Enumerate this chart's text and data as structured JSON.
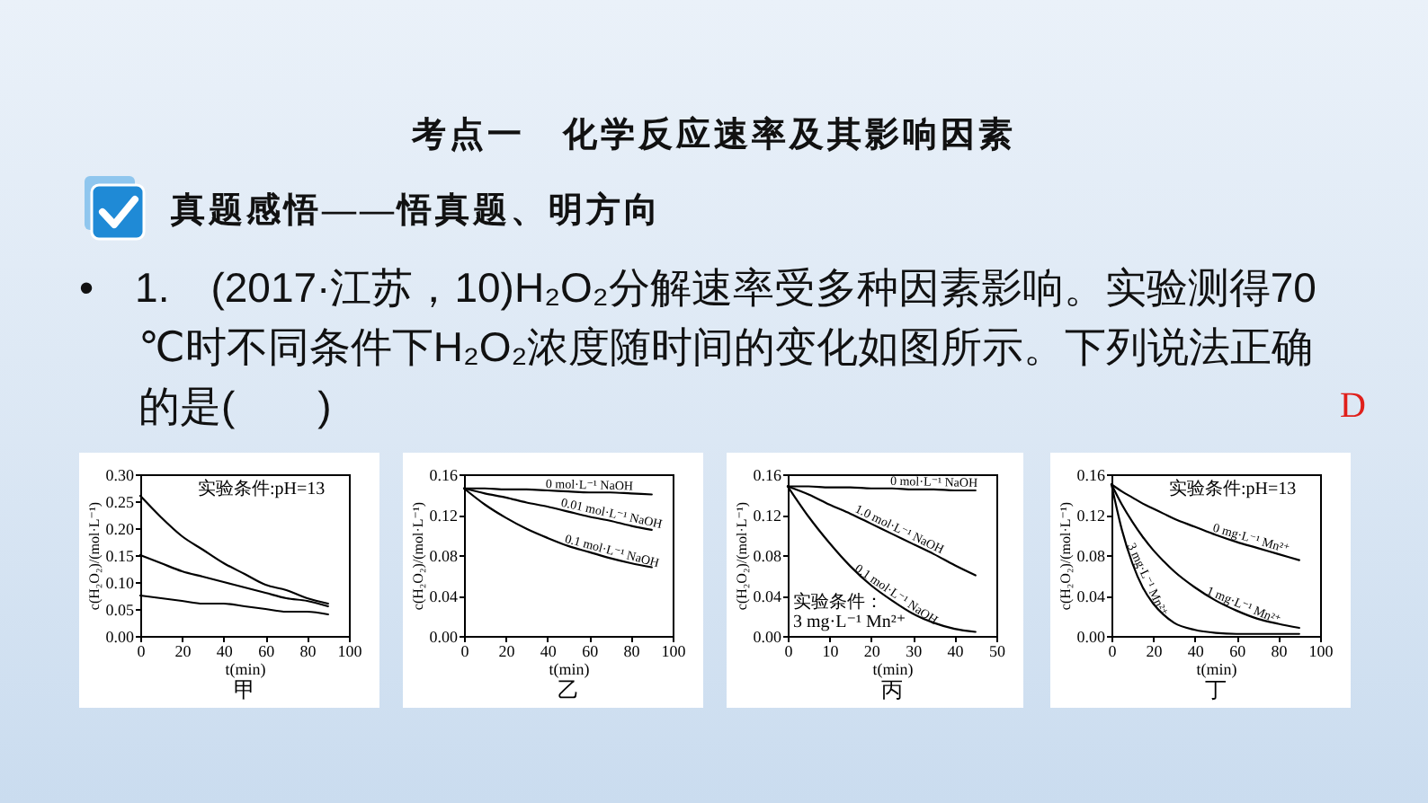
{
  "chart_data": [
    {
      "type": "line",
      "title": "甲",
      "xlabel": "t(min)",
      "ylabel": "c(H₂O₂)/(mol·L⁻¹)",
      "annotations": [
        "考点一　化学反应速率及其影响因素",
        "真题感悟——悟真题、明方向",
        "• 1.　(2017·江苏，10)H₂O₂分解速率受多种因素影响。实验测得70 ℃时不同条件下H₂O₂浓度随时间的变化如图所示。下列说法正确的是(　　)",
        "D",
        "实验条件:pH=13"
      ],
      "x": [
        0,
        10,
        20,
        30,
        40,
        50,
        60,
        70,
        80,
        90
      ],
      "series": [
        {
          "color": "#000000",
          "values": [
            0.26,
            0.22,
            0.185,
            0.16,
            0.135,
            0.115,
            0.095,
            0.085,
            0.07,
            0.06
          ]
        },
        {
          "color": "#000000",
          "values": [
            0.15,
            0.135,
            0.12,
            0.11,
            0.1,
            0.09,
            0.08,
            0.07,
            0.065,
            0.055
          ]
        },
        {
          "color": "#000000",
          "values": [
            0.075,
            0.07,
            0.065,
            0.06,
            0.06,
            0.055,
            0.05,
            0.045,
            0.045,
            0.04
          ]
        }
      ],
      "xlim": [
        0,
        100
      ],
      "xticks": [
        0,
        20,
        40,
        60,
        80,
        100
      ],
      "ylim": [
        0,
        0.3
      ],
      "yticks": [
        {
          "value": 0,
          "label": "0.00"
        },
        0.05,
        {
          "value": 0.1,
          "label": "0.10"
        },
        0.15,
        {
          "value": 0.2,
          "label": "0.20"
        },
        0.25,
        {
          "value": 0.3,
          "label": "0.30"
        }
      ]
    },
    {
      "type": "line",
      "title": "乙",
      "xlabel": "t(min)",
      "ylabel": "c(H₂O₂)/(mol·L⁻¹)",
      "x": [
        0,
        10,
        20,
        30,
        40,
        50,
        60,
        70,
        80,
        90
      ],
      "series": [
        {
          "name": "0 mol·L⁻¹ NaOH",
          "color": "#000000",
          "values": [
            0.146,
            0.146,
            0.145,
            0.145,
            0.144,
            0.143,
            0.142,
            0.142,
            0.141,
            0.14
          ]
        },
        {
          "name": "0.01 mol·L⁻¹ NaOH",
          "color": "#000000",
          "values": [
            0.146,
            0.141,
            0.137,
            0.132,
            0.128,
            0.123,
            0.118,
            0.114,
            0.109,
            0.105
          ]
        },
        {
          "name": "0.1 mol·L⁻¹ NaOH",
          "color": "#000000",
          "values": [
            0.146,
            0.13,
            0.117,
            0.106,
            0.097,
            0.089,
            0.083,
            0.077,
            0.072,
            0.068
          ]
        }
      ],
      "xlim": [
        0,
        100
      ],
      "xticks": [
        0,
        20,
        40,
        60,
        80,
        100
      ],
      "ylim": [
        0,
        0.16
      ],
      "yticks": [
        {
          "value": 0,
          "label": "0.00"
        },
        0.04,
        0.08,
        0.12,
        0.16
      ]
    },
    {
      "type": "line",
      "title": "丙",
      "xlabel": "t(min)",
      "ylabel": "c(H₂O₂)/(mol·L⁻¹)",
      "annotations": [
        "实验条件：\n3 mg·L⁻¹ Mn²⁺"
      ],
      "x": [
        0,
        5,
        10,
        15,
        20,
        25,
        30,
        35,
        40,
        45
      ],
      "series": [
        {
          "name": "0 mol·L⁻¹ NaOH",
          "color": "#000000",
          "values": [
            0.148,
            0.148,
            0.147,
            0.147,
            0.146,
            0.146,
            0.145,
            0.145,
            0.144,
            0.144
          ]
        },
        {
          "name": "1.0 mol·L⁻¹ NaOH",
          "color": "#000000",
          "values": [
            0.148,
            0.14,
            0.13,
            0.121,
            0.111,
            0.101,
            0.091,
            0.081,
            0.07,
            0.06
          ]
        },
        {
          "name": "0.1 mol·L⁻¹ NaOH",
          "color": "#000000",
          "values": [
            0.148,
            0.118,
            0.092,
            0.069,
            0.05,
            0.035,
            0.022,
            0.013,
            0.007,
            0.004
          ]
        }
      ],
      "xlim": [
        0,
        50
      ],
      "xticks": [
        0,
        10,
        20,
        30,
        40,
        50
      ],
      "ylim": [
        0,
        0.16
      ],
      "yticks": [
        {
          "value": 0,
          "label": "0.00"
        },
        0.04,
        0.08,
        0.12,
        0.16
      ]
    },
    {
      "type": "line",
      "title": "丁",
      "xlabel": "t(min)",
      "ylabel": "c(H₂O₂)/(mol·L⁻¹)",
      "annotations": [
        "实验条件:pH=13"
      ],
      "x": [
        0,
        5,
        10,
        15,
        20,
        25,
        30,
        40,
        50,
        60,
        70,
        80,
        90
      ],
      "series": [
        {
          "name": "0 mg·L⁻¹ Mn²⁺",
          "color": "#000000",
          "values": [
            0.15,
            0.143,
            0.137,
            0.131,
            0.126,
            0.121,
            0.116,
            0.108,
            0.1,
            0.093,
            0.087,
            0.081,
            0.075
          ]
        },
        {
          "name": "1 mg·L⁻¹ Mn²⁺",
          "color": "#000000",
          "values": [
            0.15,
            0.13,
            0.113,
            0.098,
            0.085,
            0.074,
            0.064,
            0.048,
            0.035,
            0.025,
            0.017,
            0.012,
            0.008
          ]
        },
        {
          "name": "3 mg·L⁻¹ Mn²⁺",
          "color": "#000000",
          "values": [
            0.15,
            0.105,
            0.072,
            0.048,
            0.032,
            0.021,
            0.013,
            0.006,
            0.003,
            0.002,
            0.002,
            0.002,
            0.002
          ]
        }
      ],
      "xlim": [
        0,
        100
      ],
      "xticks": [
        0,
        20,
        40,
        60,
        80,
        100
      ],
      "ylim": [
        0,
        0.16
      ],
      "yticks": [
        {
          "value": 0,
          "label": "0.00"
        },
        0.04,
        0.08,
        0.12,
        0.16
      ]
    }
  ]
}
